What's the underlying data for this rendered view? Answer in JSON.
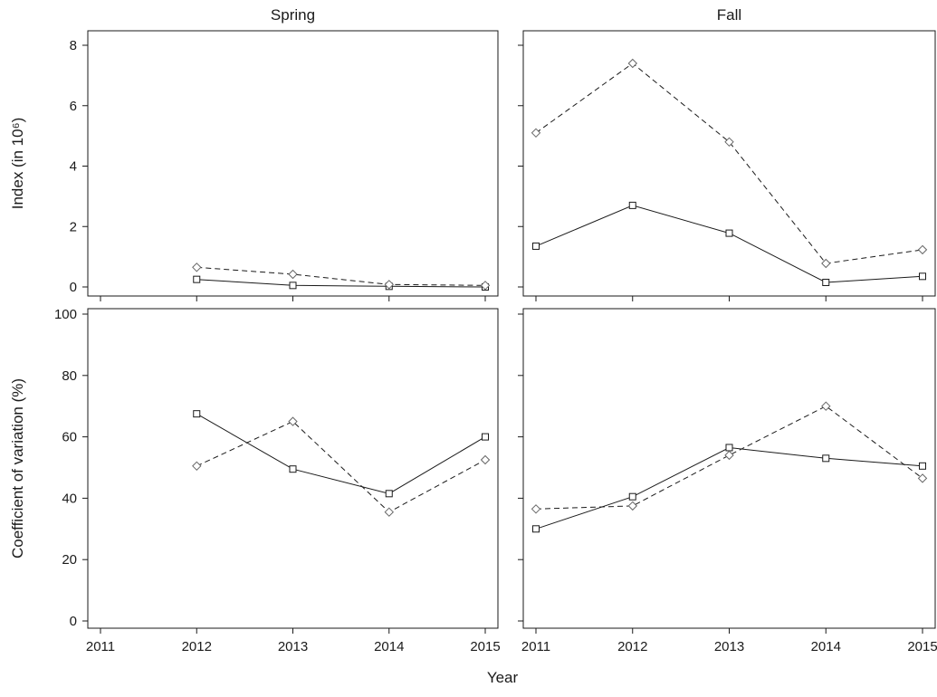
{
  "chart_data": {
    "type": "line",
    "xlabel": "Year",
    "columns": [
      "Spring",
      "Fall"
    ],
    "x_ticks": [
      2011,
      2012,
      2013,
      2014,
      2015
    ],
    "xlim": [
      2011,
      2015
    ],
    "legend": "none",
    "grid": false,
    "rows": [
      {
        "ylabel": "Index (in 10⁶)",
        "ylim": [
          0,
          8
        ],
        "y_ticks": [
          0,
          2,
          4,
          6,
          8
        ]
      },
      {
        "ylabel": "Coefficient of variation (%)",
        "ylim": [
          0,
          100
        ],
        "y_ticks": [
          0,
          20,
          40,
          60,
          80,
          100
        ]
      }
    ],
    "panels": [
      {
        "row": 0,
        "col": 0,
        "title": "Spring",
        "series": [
          {
            "marker": "square",
            "style": "solid",
            "x": [
              2012,
              2013,
              2014,
              2015
            ],
            "y": [
              0.25,
              0.05,
              0.02,
              0.0
            ]
          },
          {
            "marker": "diamond",
            "style": "dashed",
            "x": [
              2012,
              2013,
              2014,
              2015
            ],
            "y": [
              0.65,
              0.42,
              0.08,
              0.05
            ]
          }
        ]
      },
      {
        "row": 0,
        "col": 1,
        "title": "Fall",
        "series": [
          {
            "marker": "square",
            "style": "solid",
            "x": [
              2011,
              2012,
              2013,
              2014,
              2015
            ],
            "y": [
              1.35,
              2.7,
              1.78,
              0.15,
              0.35
            ]
          },
          {
            "marker": "diamond",
            "style": "dashed",
            "x": [
              2011,
              2012,
              2013,
              2014,
              2015
            ],
            "y": [
              5.1,
              7.4,
              4.8,
              0.78,
              1.23
            ]
          }
        ]
      },
      {
        "row": 1,
        "col": 0,
        "title": "",
        "series": [
          {
            "marker": "square",
            "style": "solid",
            "x": [
              2012,
              2013,
              2014,
              2015
            ],
            "y": [
              67.5,
              49.5,
              41.5,
              60.0
            ]
          },
          {
            "marker": "diamond",
            "style": "dashed",
            "x": [
              2012,
              2013,
              2014,
              2015
            ],
            "y": [
              50.5,
              65.0,
              35.5,
              52.5
            ]
          }
        ]
      },
      {
        "row": 1,
        "col": 1,
        "title": "",
        "series": [
          {
            "marker": "square",
            "style": "solid",
            "x": [
              2011,
              2012,
              2013,
              2014,
              2015
            ],
            "y": [
              30.0,
              40.5,
              56.5,
              53.0,
              50.5
            ]
          },
          {
            "marker": "diamond",
            "style": "dashed",
            "x": [
              2011,
              2012,
              2013,
              2014,
              2015
            ],
            "y": [
              36.5,
              37.5,
              54.0,
              70.0,
              46.5
            ]
          }
        ]
      }
    ],
    "colors": {
      "solid_line": "#1a1a1a",
      "dashed_line": "#1a1a1a",
      "square_marker": "#1a1a1a",
      "diamond_marker": "#666666"
    }
  }
}
